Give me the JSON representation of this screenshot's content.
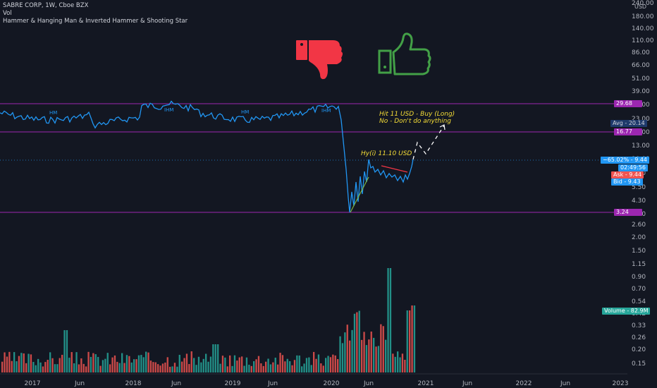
{
  "header": {
    "title": "SABRE CORP, 1W, Cboe BZX",
    "vol_label": "Vol",
    "indicator": "Hammer & Hanging Man & Inverted Hammer & Shooting Star"
  },
  "price_axis": {
    "currency": "USD",
    "ticks": [
      "240.00",
      "180.00",
      "140.00",
      "110.00",
      "86.00",
      "66.00",
      "51.00",
      "39.00",
      "30.00",
      "23.00",
      "17.00",
      "13.00",
      "10.00",
      "7.60",
      "5.50",
      "4.30",
      "3.30",
      "2.60",
      "2.00",
      "1.50",
      "1.15",
      "0.90",
      "0.70",
      "0.54",
      "0.42",
      "0.33",
      "0.26",
      "0.20",
      "0.15"
    ]
  },
  "time_axis": {
    "ticks": [
      "2017",
      "Jun",
      "2018",
      "Jun",
      "2019",
      "Jun",
      "2020",
      "Jun",
      "2021",
      "Jun",
      "2022",
      "Jun",
      "2023"
    ]
  },
  "levels": [
    "29.68",
    "16.77",
    "3.24"
  ],
  "tags": {
    "avg_label": "Avg",
    "avg_value": "20.14",
    "change_pct": "−65.02%",
    "last_price": "9.44",
    "countdown": "02:49:56",
    "ask_label": "Ask",
    "ask_value": "9.44",
    "bid_label": "Bid",
    "bid_value": "9.43",
    "volume_label": "Volume",
    "volume_value": "82.9M"
  },
  "annotations": {
    "target": "Hy(i) 11.10 USD",
    "plan_line1": "Hit 11 USD - Buy (Long)",
    "plan_line2": "No - Don't do anything"
  },
  "pattern_labels": [
    "HM",
    "IHM",
    "HM",
    "IHM"
  ],
  "icons": {
    "thumbs_down": "thumbs-down-icon",
    "thumbs_up": "thumbs-up-icon"
  },
  "colors": {
    "background": "#131722",
    "price_line": "#2196f3",
    "level_line": "#9c27b0",
    "thumbs_down": "#f23645",
    "thumbs_up": "#43a047",
    "vol_up": "#26a69a",
    "vol_down": "#ef5350",
    "annotation": "#f5dd36"
  }
}
